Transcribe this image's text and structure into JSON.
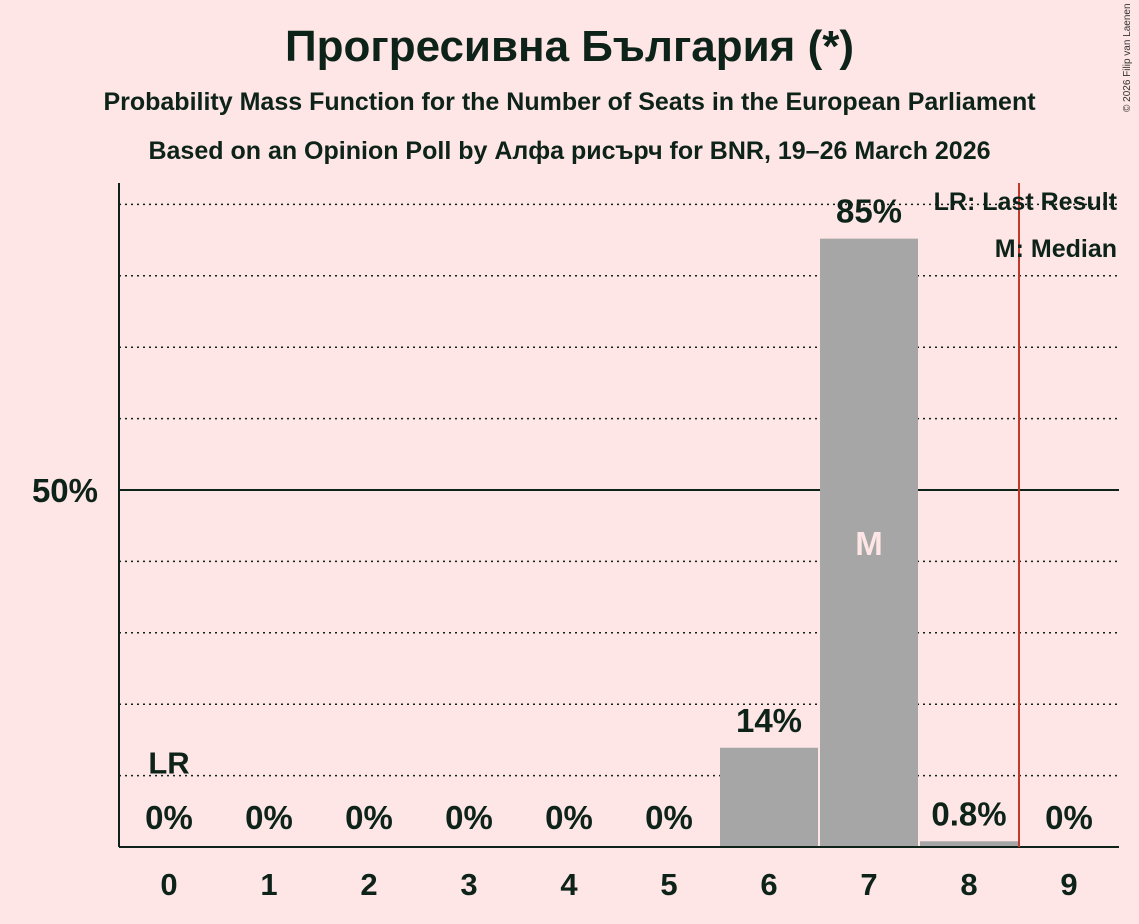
{
  "chart_data": {
    "type": "bar",
    "title": "Прогресивна България (*)",
    "subtitle": "Probability Mass Function for the Number of Seats in the European Parliament",
    "subtitle2": "Based on an Opinion Poll by Алфа рисърч for BNR, 19–26 March 2026",
    "categories": [
      "0",
      "1",
      "2",
      "3",
      "4",
      "5",
      "6",
      "7",
      "8",
      "9"
    ],
    "values": [
      0,
      0,
      0,
      0,
      0,
      0,
      13.9,
      85.2,
      0.8,
      0
    ],
    "data_labels": [
      "0%",
      "0%",
      "0%",
      "0%",
      "0%",
      "0%",
      "14%",
      "85%",
      "0.8%",
      "0%"
    ],
    "ylim": [
      0,
      100
    ],
    "ytick_label": "50%",
    "last_result_seat": 0,
    "last_result_marker": "LR",
    "median_seat": 7,
    "median_marker": "M",
    "threshold_line_at": 8.5,
    "legend": [
      "LR: Last Result",
      "M: Median"
    ],
    "legend_position": "top-right",
    "bar_color": "#a6a6a6",
    "line_color": "#c0392b",
    "copyright": "© 2026 Filip van Laenen"
  }
}
